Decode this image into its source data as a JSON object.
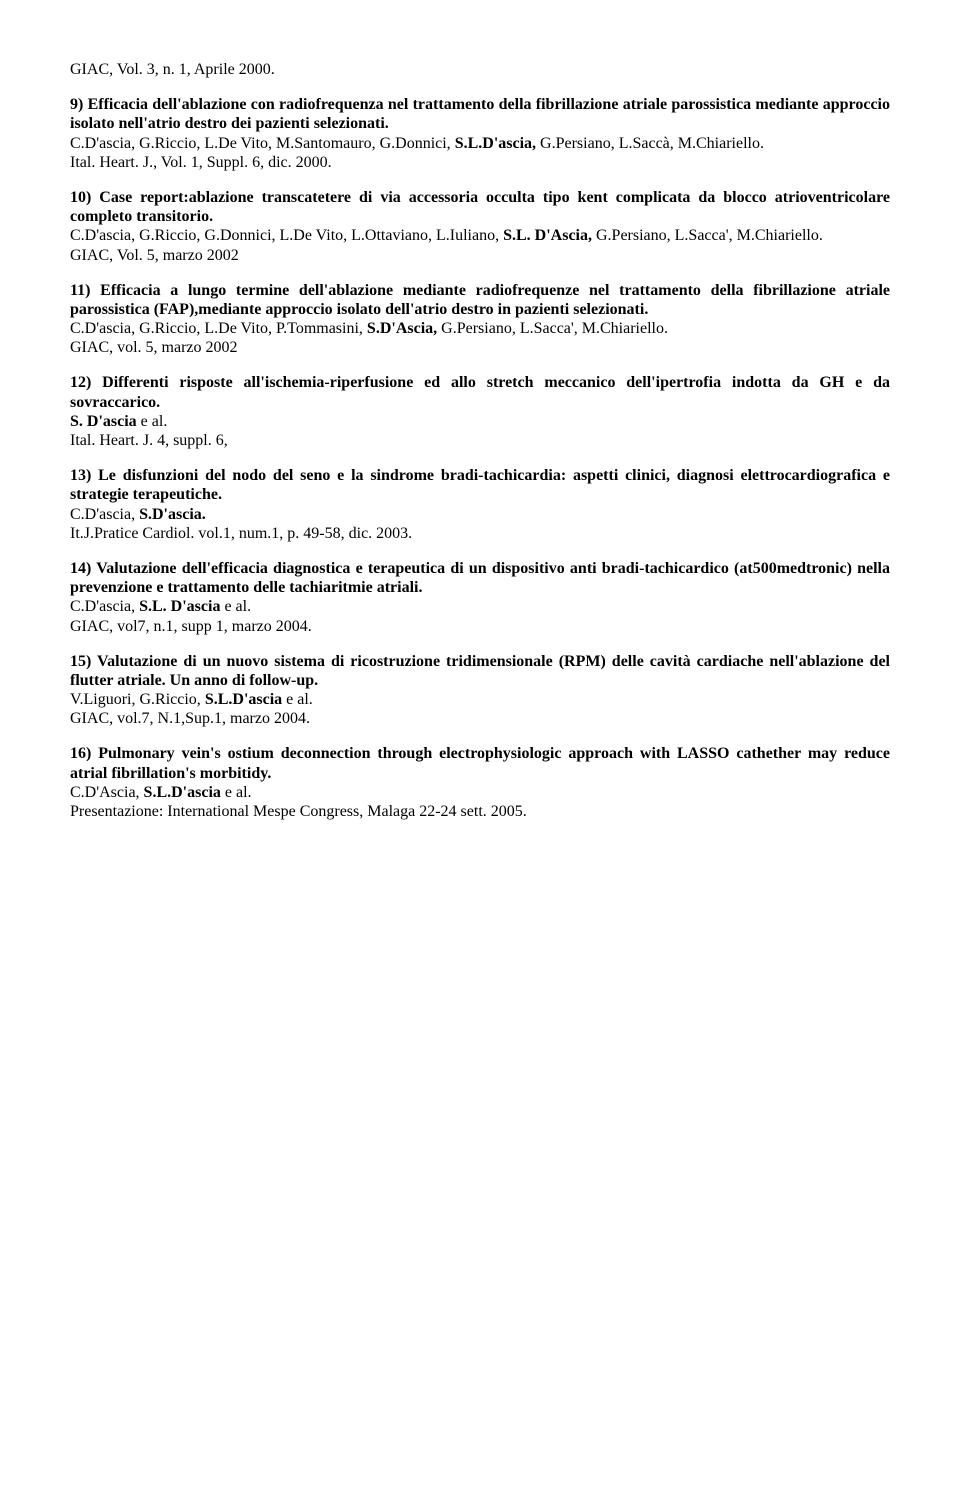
{
  "refline": "GIAC, Vol. 3, n. 1, Aprile 2000.",
  "entries": [
    {
      "title": "9) Efficacia dell'ablazione con radiofrequenza nel trattamento della fibrillazione atriale parossistica mediante approccio isolato nell'atrio destro dei pazienti selezionati.",
      "authors_pre": "C.D'ascia, G.Riccio, L.De Vito, M.Santomauro, G.Donnici, ",
      "authors_bold": "S.L.D'ascia, ",
      "authors_post": "G.Persiano, L.Saccà, M.Chiariello.",
      "ref": "Ital. Heart. J., Vol. 1, Suppl. 6, dic. 2000."
    },
    {
      "title": "10) Case report:ablazione transcatetere di via accessoria occulta tipo kent complicata da blocco atrioventricolare completo transitorio.",
      "authors_pre": "C.D'ascia, G.Riccio, G.Donnici, L.De Vito, L.Ottaviano, L.Iuliano, ",
      "authors_bold": "S.L. D'Ascia, ",
      "authors_post": "G.Persiano, L.Sacca', M.Chiariello.",
      "ref": "GIAC, Vol. 5, marzo 2002"
    },
    {
      "title": "11) Efficacia a lungo termine dell'ablazione mediante radiofrequenze nel trattamento della fibrillazione atriale parossistica (FAP),mediante approccio isolato dell'atrio destro in pazienti selezionati.",
      "authors_pre": "C.D'ascia, G.Riccio, L.De Vito, P.Tommasini, ",
      "authors_bold": "S.D'Ascia, ",
      "authors_post": "G.Persiano, L.Sacca', M.Chiariello.",
      "ref": "GIAC, vol. 5, marzo 2002"
    },
    {
      "title": "12) Differenti risposte all'ischemia-riperfusione ed allo stretch meccanico dell'ipertrofia indotta da GH e da sovraccarico.",
      "authors_pre": "",
      "authors_bold": "S. D'ascia ",
      "authors_post": "e al.",
      "ref": "Ital. Heart. J. 4, suppl. 6,"
    },
    {
      "title": "13) Le disfunzioni del nodo del seno e la sindrome bradi-tachicardia: aspetti clinici, diagnosi elettrocardiografica e strategie terapeutiche.",
      "authors_pre": "C.D'ascia, ",
      "authors_bold": "S.D'ascia.",
      "authors_post": "",
      "ref": "It.J.Pratice Cardiol. vol.1, num.1, p. 49-58, dic. 2003."
    },
    {
      "title": "14) Valutazione dell'efficacia diagnostica e terapeutica di un dispositivo anti bradi-tachicardico (at500medtronic) nella prevenzione e trattamento delle tachiaritmie atriali.",
      "authors_pre": "C.D'ascia, ",
      "authors_bold": "S.L. D'ascia ",
      "authors_post": "e al.",
      "ref": "GIAC, vol7, n.1, supp 1, marzo 2004."
    },
    {
      "title": "15) Valutazione di un nuovo sistema di ricostruzione tridimensionale (RPM) delle cavità cardiache nell'ablazione del flutter atriale. Un anno di follow-up.",
      "authors_pre": "V.Liguori, G.Riccio, ",
      "authors_bold": "S.L.D'ascia ",
      "authors_post": "e al.",
      "ref": "GIAC, vol.7, N.1,Sup.1, marzo 2004."
    },
    {
      "title": "16) Pulmonary vein's ostium deconnection through electrophysiologic approach with LASSO cathether may reduce atrial fibrillation's morbitidy.",
      "authors_pre": "C.D'Ascia, ",
      "authors_bold": "S.L.D'ascia ",
      "authors_post": "e al.",
      "ref": "Presentazione: International Mespe Congress, Malaga 22-24 sett. 2005."
    }
  ]
}
